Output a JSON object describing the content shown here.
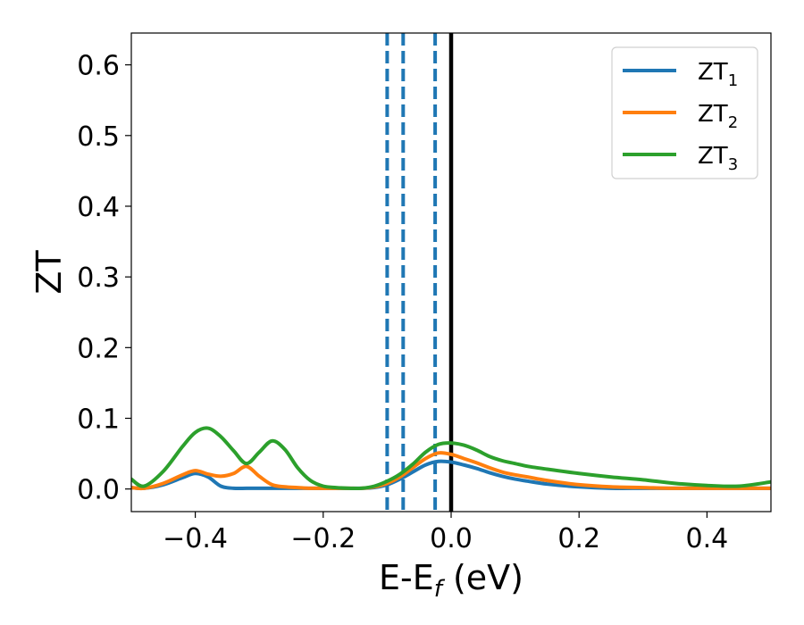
{
  "chart_data": {
    "type": "line",
    "xlabel": {
      "main": "E-E",
      "sub": "f",
      "unit": " (eV)"
    },
    "ylabel": "ZT",
    "xlim": [
      -0.5,
      0.5
    ],
    "ylim": [
      -0.032,
      0.645
    ],
    "xticks": [
      -0.4,
      -0.2,
      0.0,
      0.2,
      0.4
    ],
    "xtick_labels": [
      "−0.4",
      "−0.2",
      "0.0",
      "0.2",
      "0.4"
    ],
    "yticks": [
      0.0,
      0.1,
      0.2,
      0.3,
      0.4,
      0.5,
      0.6
    ],
    "ytick_labels": [
      "0.0",
      "0.1",
      "0.2",
      "0.3",
      "0.4",
      "0.5",
      "0.6"
    ],
    "grid": false,
    "legend_position": "top-right",
    "vertical_lines": [
      {
        "x": -0.1,
        "style": "dashed",
        "color": "#1f77b4"
      },
      {
        "x": -0.075,
        "style": "dashed",
        "color": "#1f77b4"
      },
      {
        "x": -0.025,
        "style": "dashed",
        "color": "#1f77b4"
      },
      {
        "x": 0.0,
        "style": "solid",
        "color": "#000000"
      }
    ],
    "x": [
      -0.5,
      -0.48,
      -0.45,
      -0.42,
      -0.4,
      -0.38,
      -0.36,
      -0.34,
      -0.32,
      -0.3,
      -0.28,
      -0.26,
      -0.24,
      -0.22,
      -0.2,
      -0.18,
      -0.16,
      -0.14,
      -0.12,
      -0.1,
      -0.08,
      -0.06,
      -0.04,
      -0.02,
      0.0,
      0.02,
      0.04,
      0.06,
      0.08,
      0.1,
      0.12,
      0.15,
      0.2,
      0.25,
      0.3,
      0.35,
      0.4,
      0.45,
      0.5
    ],
    "series": [
      {
        "name": "ZT",
        "sub": "1",
        "color": "#1f77b4",
        "values": [
          0.002,
          0.001,
          0.006,
          0.016,
          0.022,
          0.017,
          0.004,
          0.001,
          0.001,
          0.001,
          0.001,
          0.001,
          0.001,
          0.001,
          0.001,
          0.001,
          0.001,
          0.001,
          0.002,
          0.006,
          0.014,
          0.024,
          0.034,
          0.039,
          0.038,
          0.034,
          0.029,
          0.023,
          0.018,
          0.014,
          0.011,
          0.007,
          0.003,
          0.001,
          0.001,
          0.001,
          0.001,
          0.001,
          0.001
        ]
      },
      {
        "name": "ZT",
        "sub": "2",
        "color": "#ff7f0e",
        "values": [
          0.002,
          0.001,
          0.008,
          0.02,
          0.026,
          0.021,
          0.018,
          0.022,
          0.032,
          0.018,
          0.006,
          0.003,
          0.002,
          0.001,
          0.001,
          0.001,
          0.001,
          0.001,
          0.003,
          0.008,
          0.017,
          0.03,
          0.043,
          0.051,
          0.049,
          0.043,
          0.037,
          0.03,
          0.024,
          0.02,
          0.017,
          0.012,
          0.006,
          0.003,
          0.002,
          0.001,
          0.001,
          0.001,
          0.001
        ]
      },
      {
        "name": "ZT",
        "sub": "3",
        "color": "#2ca02c",
        "values": [
          0.014,
          0.004,
          0.025,
          0.06,
          0.08,
          0.086,
          0.074,
          0.054,
          0.036,
          0.052,
          0.068,
          0.056,
          0.03,
          0.012,
          0.004,
          0.002,
          0.001,
          0.001,
          0.004,
          0.011,
          0.021,
          0.035,
          0.052,
          0.063,
          0.065,
          0.062,
          0.055,
          0.046,
          0.04,
          0.036,
          0.032,
          0.028,
          0.022,
          0.017,
          0.013,
          0.008,
          0.005,
          0.004,
          0.01
        ]
      }
    ]
  }
}
